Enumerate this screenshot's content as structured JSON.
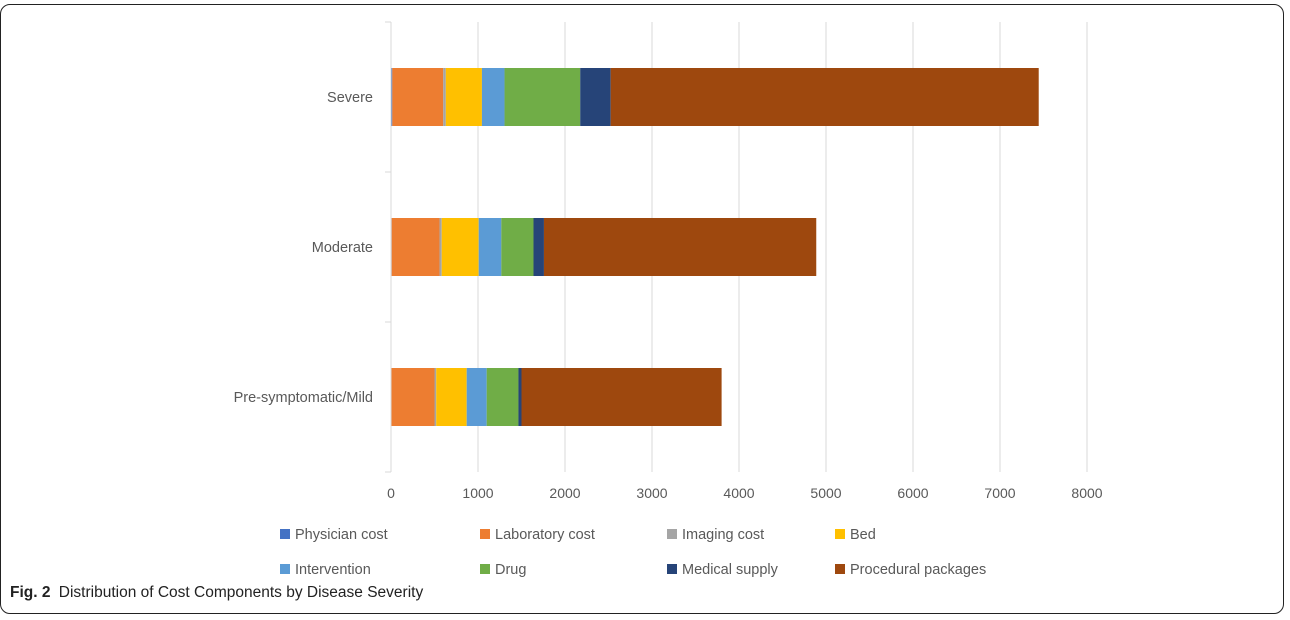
{
  "caption": {
    "label": "Fig. 2",
    "text": "Distribution of Cost Components by Disease Severity"
  },
  "chart_data": {
    "type": "bar",
    "orientation": "horizontal",
    "stacked": true,
    "categories": [
      "Severe",
      "Moderate",
      "Pre-symptomatic/Mild"
    ],
    "series": [
      {
        "name": "Physician cost",
        "color": "#4472C4",
        "values": [
          15,
          8,
          5
        ]
      },
      {
        "name": "Laboratory cost",
        "color": "#ED7D31",
        "values": [
          585,
          550,
          495
        ]
      },
      {
        "name": "Imaging cost",
        "color": "#A5A5A5",
        "values": [
          30,
          25,
          20
        ]
      },
      {
        "name": "Bed",
        "color": "#FFC000",
        "values": [
          415,
          425,
          350
        ]
      },
      {
        "name": "Intervention",
        "color": "#5B9BD5",
        "values": [
          260,
          260,
          230
        ]
      },
      {
        "name": "Drug",
        "color": "#70AD47",
        "values": [
          870,
          370,
          365
        ]
      },
      {
        "name": "Medical supply",
        "color": "#264478",
        "values": [
          350,
          120,
          35
        ]
      },
      {
        "name": "Procedural packages",
        "color": "#9E480E",
        "values": [
          4920,
          3130,
          2300
        ]
      }
    ],
    "xlim": [
      0,
      8000
    ],
    "xticks": [
      "0",
      "1000",
      "2000",
      "3000",
      "4000",
      "5000",
      "6000",
      "7000",
      "8000"
    ],
    "grid": true,
    "legend_position": "bottom"
  }
}
